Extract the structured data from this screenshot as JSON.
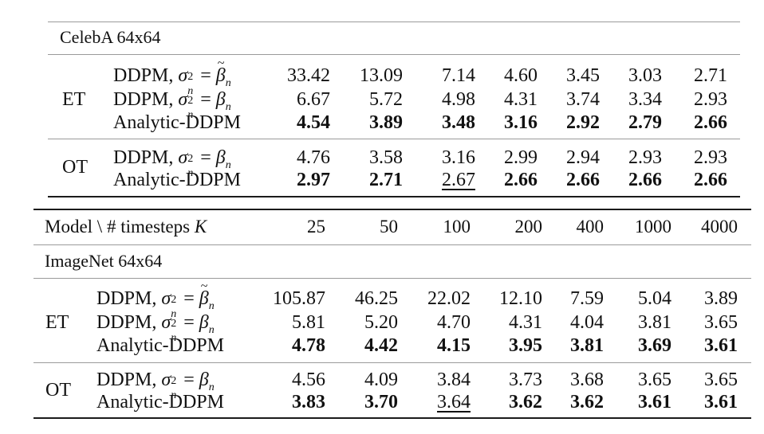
{
  "header": {
    "model_label": "Model \\ # timesteps",
    "K_symbol": "K",
    "timesteps": [
      "25",
      "50",
      "100",
      "200",
      "400",
      "1000",
      "4000"
    ]
  },
  "celeba": {
    "title": "CelebA 64x64",
    "groups": [
      {
        "name": "ET",
        "rows": [
          {
            "method": "DDPM, σ² = β̃ₙ",
            "values": [
              "33.42",
              "13.09",
              "7.14",
              "4.60",
              "3.45",
              "3.03",
              "2.71"
            ],
            "bold": [
              false,
              false,
              false,
              false,
              false,
              false,
              false
            ],
            "underline": [
              false,
              false,
              false,
              false,
              false,
              false,
              false
            ]
          },
          {
            "method": "DDPM, σ² = βₙ",
            "values": [
              "6.67",
              "5.72",
              "4.98",
              "4.31",
              "3.74",
              "3.34",
              "2.93"
            ],
            "bold": [
              false,
              false,
              false,
              false,
              false,
              false,
              false
            ],
            "underline": [
              false,
              false,
              false,
              false,
              false,
              false,
              false
            ]
          },
          {
            "method": "Analytic-DDPM",
            "values": [
              "4.54",
              "3.89",
              "3.48",
              "3.16",
              "2.92",
              "2.79",
              "2.66"
            ],
            "bold": [
              true,
              true,
              true,
              true,
              true,
              true,
              true
            ],
            "underline": [
              false,
              false,
              false,
              false,
              false,
              false,
              false
            ]
          }
        ]
      },
      {
        "name": "OT",
        "rows": [
          {
            "method": "DDPM, σ² = βₙ",
            "values": [
              "4.76",
              "3.58",
              "3.16",
              "2.99",
              "2.94",
              "2.93",
              "2.93"
            ],
            "bold": [
              false,
              false,
              false,
              false,
              false,
              false,
              false
            ],
            "underline": [
              false,
              false,
              false,
              false,
              false,
              false,
              false
            ]
          },
          {
            "method": "Analytic-DDPM",
            "values": [
              "2.97",
              "2.71",
              "2.67",
              "2.66",
              "2.66",
              "2.66",
              "2.66"
            ],
            "bold": [
              true,
              true,
              false,
              true,
              true,
              true,
              true
            ],
            "underline": [
              false,
              false,
              true,
              false,
              false,
              false,
              false
            ]
          }
        ]
      }
    ]
  },
  "imagenet": {
    "title": "ImageNet 64x64",
    "groups": [
      {
        "name": "ET",
        "rows": [
          {
            "method": "DDPM, σ² = β̃ₙ",
            "values": [
              "105.87",
              "46.25",
              "22.02",
              "12.10",
              "7.59",
              "5.04",
              "3.89"
            ],
            "bold": [
              false,
              false,
              false,
              false,
              false,
              false,
              false
            ],
            "underline": [
              false,
              false,
              false,
              false,
              false,
              false,
              false
            ]
          },
          {
            "method": "DDPM, σ² = βₙ",
            "values": [
              "5.81",
              "5.20",
              "4.70",
              "4.31",
              "4.04",
              "3.81",
              "3.65"
            ],
            "bold": [
              false,
              false,
              false,
              false,
              false,
              false,
              false
            ],
            "underline": [
              false,
              false,
              false,
              false,
              false,
              false,
              false
            ]
          },
          {
            "method": "Analytic-DDPM",
            "values": [
              "4.78",
              "4.42",
              "4.15",
              "3.95",
              "3.81",
              "3.69",
              "3.61"
            ],
            "bold": [
              true,
              true,
              true,
              true,
              true,
              true,
              true
            ],
            "underline": [
              false,
              false,
              false,
              false,
              false,
              false,
              false
            ]
          }
        ]
      },
      {
        "name": "OT",
        "rows": [
          {
            "method": "DDPM, σ² = βₙ",
            "values": [
              "4.56",
              "4.09",
              "3.84",
              "3.73",
              "3.68",
              "3.65",
              "3.65"
            ],
            "bold": [
              false,
              false,
              false,
              false,
              false,
              false,
              false
            ],
            "underline": [
              false,
              false,
              false,
              false,
              false,
              false,
              false
            ]
          },
          {
            "method": "Analytic-DDPM",
            "values": [
              "3.83",
              "3.70",
              "3.64",
              "3.62",
              "3.62",
              "3.61",
              "3.61"
            ],
            "bold": [
              true,
              true,
              false,
              true,
              true,
              true,
              true
            ],
            "underline": [
              false,
              false,
              true,
              false,
              false,
              false,
              false
            ]
          }
        ]
      }
    ]
  }
}
